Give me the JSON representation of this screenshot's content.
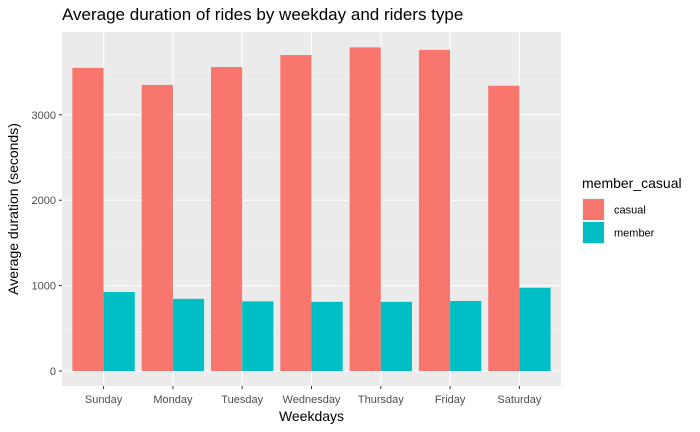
{
  "chart_data": {
    "type": "bar",
    "title": "Average duration of rides by weekday and riders type",
    "xlabel": "Weekdays",
    "ylabel": "Average duration (seconds)",
    "categories": [
      "Sunday",
      "Monday",
      "Tuesday",
      "Wednesday",
      "Thursday",
      "Friday",
      "Saturday"
    ],
    "series": [
      {
        "name": "casual",
        "color": "#F8766D",
        "values": [
          3550,
          3350,
          3560,
          3700,
          3790,
          3760,
          3340
        ]
      },
      {
        "name": "member",
        "color": "#00BFC4",
        "values": [
          925,
          845,
          815,
          810,
          810,
          820,
          975
        ]
      }
    ],
    "ylim": [
      0,
      3970
    ],
    "yticks": [
      0,
      1000,
      2000,
      3000
    ],
    "legend": {
      "title": "member_casual",
      "position": "right"
    },
    "grid": true,
    "panel_background": "#EBEBEB"
  }
}
